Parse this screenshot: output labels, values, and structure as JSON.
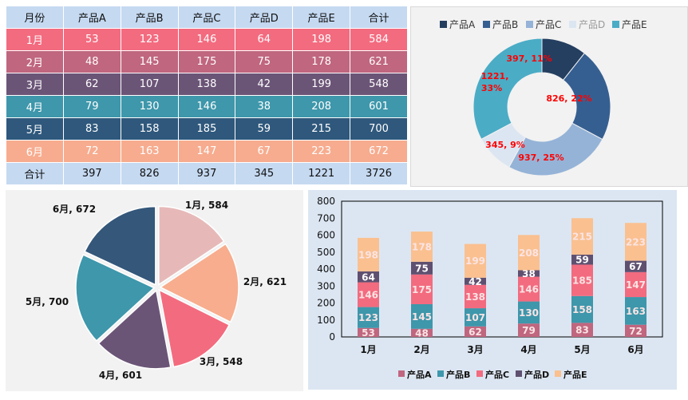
{
  "table": {
    "headers": [
      "月份",
      "产品A",
      "产品B",
      "产品C",
      "产品D",
      "产品E",
      "合计"
    ],
    "rows": [
      {
        "cells": [
          "1月",
          "53",
          "123",
          "146",
          "64",
          "198",
          "584"
        ],
        "color": "#f36b7f"
      },
      {
        "cells": [
          "2月",
          "48",
          "145",
          "175",
          "75",
          "178",
          "621"
        ],
        "color": "#c0667f"
      },
      {
        "cells": [
          "3月",
          "62",
          "107",
          "138",
          "42",
          "199",
          "548"
        ],
        "color": "#6b5577"
      },
      {
        "cells": [
          "4月",
          "79",
          "130",
          "146",
          "38",
          "208",
          "601"
        ],
        "color": "#3e97ab"
      },
      {
        "cells": [
          "5月",
          "83",
          "158",
          "185",
          "59",
          "215",
          "700"
        ],
        "color": "#2f587c"
      },
      {
        "cells": [
          "6月",
          "72",
          "163",
          "147",
          "67",
          "223",
          "672"
        ],
        "color": "#f7ac8f"
      }
    ],
    "footer": [
      "合计",
      "397",
      "826",
      "937",
      "345",
      "1221",
      "3726"
    ]
  },
  "chart_data": [
    {
      "type": "pie",
      "variant": "donut",
      "categories": [
        "产品A",
        "产品B",
        "产品C",
        "产品D",
        "产品E"
      ],
      "values": [
        397,
        826,
        937,
        345,
        1221
      ],
      "labels": [
        "397, 11%",
        "826, 22%",
        "937, 25%",
        "345, 9%",
        "1221, 33%"
      ],
      "colors": [
        "#243f60",
        "#365f91",
        "#95b3d7",
        "#dce6f2",
        "#4bacc6"
      ],
      "legend": "top",
      "label_color": "#ff0000"
    },
    {
      "type": "pie",
      "categories": [
        "1月",
        "2月",
        "3月",
        "4月",
        "5月",
        "6月"
      ],
      "values": [
        584,
        621,
        548,
        601,
        700,
        672
      ],
      "labels": [
        "1月, 584",
        "2月, 621",
        "3月, 548",
        "4月, 601",
        "5月, 700",
        "6月, 672"
      ],
      "colors": [
        "#e6b9b8",
        "#f7ad8e",
        "#f36b7f",
        "#6b5577",
        "#3e97ab",
        "#34577a"
      ],
      "legend": "none"
    },
    {
      "type": "bar",
      "stacked": true,
      "categories": [
        "1月",
        "2月",
        "3月",
        "4月",
        "5月",
        "6月"
      ],
      "series": [
        {
          "name": "产品A",
          "values": [
            53,
            48,
            62,
            79,
            83,
            72
          ],
          "color": "#c0667f"
        },
        {
          "name": "产品B",
          "values": [
            123,
            145,
            107,
            130,
            158,
            163
          ],
          "color": "#3e97ab"
        },
        {
          "name": "产品C",
          "values": [
            146,
            175,
            138,
            146,
            185,
            147
          ],
          "color": "#f36b7f"
        },
        {
          "name": "产品D",
          "values": [
            64,
            75,
            42,
            38,
            59,
            67
          ],
          "color": "#5f5070"
        },
        {
          "name": "产品E",
          "values": [
            198,
            178,
            199,
            208,
            215,
            223
          ],
          "color": "#fac090"
        }
      ],
      "ylim": [
        0,
        800
      ],
      "yticks": [
        0,
        100,
        200,
        300,
        400,
        500,
        600,
        700,
        800
      ],
      "legend": "bottom",
      "grid": false
    }
  ]
}
